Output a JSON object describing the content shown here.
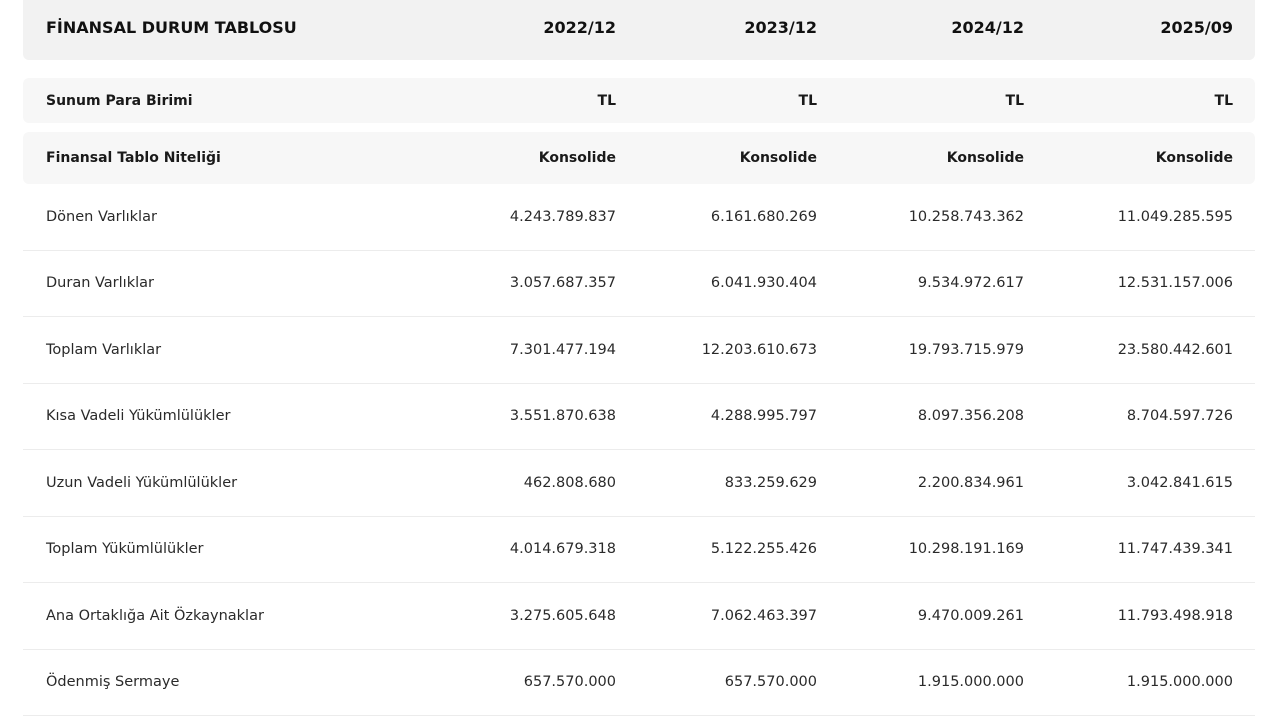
{
  "table": {
    "header": {
      "title": "FİNANSAL DURUM TABLOSU",
      "periods": [
        "2022/12",
        "2023/12",
        "2024/12",
        "2025/09"
      ]
    },
    "meta_rows": [
      {
        "label": "Sunum Para Birimi",
        "values": [
          "TL",
          "TL",
          "TL",
          "TL"
        ]
      },
      {
        "label": "Finansal Tablo Niteliği",
        "values": [
          "Konsolide",
          "Konsolide",
          "Konsolide",
          "Konsolide"
        ]
      }
    ],
    "rows": [
      {
        "label": "Dönen Varlıklar",
        "values": [
          "4.243.789.837",
          "6.161.680.269",
          "10.258.743.362",
          "11.049.285.595"
        ]
      },
      {
        "label": "Duran Varlıklar",
        "values": [
          "3.057.687.357",
          "6.041.930.404",
          "9.534.972.617",
          "12.531.157.006"
        ]
      },
      {
        "label": "Toplam Varlıklar",
        "values": [
          "7.301.477.194",
          "12.203.610.673",
          "19.793.715.979",
          "23.580.442.601"
        ]
      },
      {
        "label": "Kısa Vadeli Yükümlülükler",
        "values": [
          "3.551.870.638",
          "4.288.995.797",
          "8.097.356.208",
          "8.704.597.726"
        ]
      },
      {
        "label": "Uzun Vadeli Yükümlülükler",
        "values": [
          "462.808.680",
          "833.259.629",
          "2.200.834.961",
          "3.042.841.615"
        ]
      },
      {
        "label": "Toplam Yükümlülükler",
        "values": [
          "4.014.679.318",
          "5.122.255.426",
          "10.298.191.169",
          "11.747.439.341"
        ]
      },
      {
        "label": "Ana Ortaklığa Ait Özkaynaklar",
        "values": [
          "3.275.605.648",
          "7.062.463.397",
          "9.470.009.261",
          "11.793.498.918"
        ]
      },
      {
        "label": "Ödenmiş Sermaye",
        "values": [
          "657.570.000",
          "657.570.000",
          "1.915.000.000",
          "1.915.000.000"
        ]
      }
    ]
  }
}
